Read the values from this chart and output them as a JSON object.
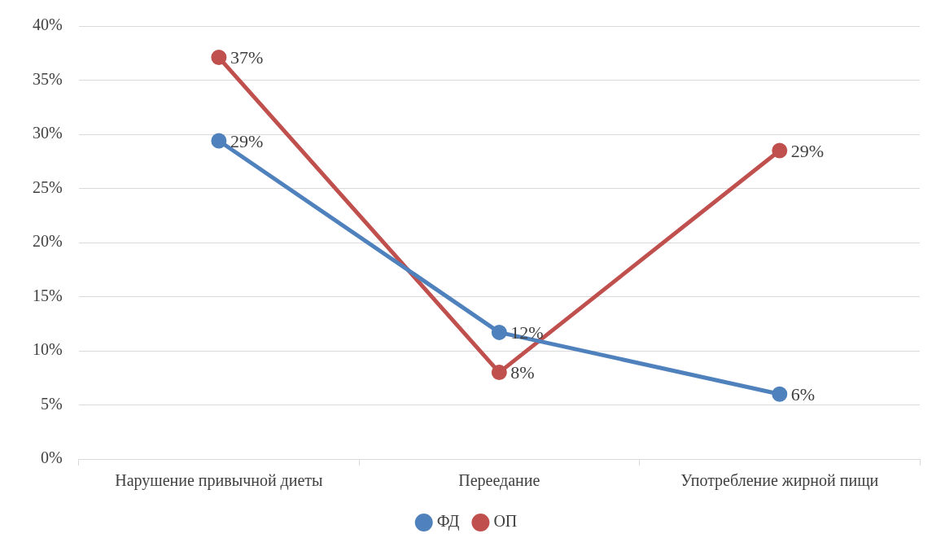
{
  "chart_data": {
    "type": "line",
    "categories": [
      "Нарушение привычной диеты",
      "Переедание",
      "Употребление жирной пищи"
    ],
    "series": [
      {
        "name": "ФД",
        "color": "#4f81bd",
        "values": [
          29.4,
          11.7,
          6
        ],
        "value_labels": [
          "29%",
          "12%",
          "6%"
        ]
      },
      {
        "name": "ОП",
        "color": "#c0504d",
        "values": [
          37.1,
          8,
          28.5
        ],
        "value_labels": [
          "37%",
          "8%",
          "29%"
        ]
      }
    ],
    "ylim": [
      0,
      40
    ],
    "yticks": [
      {
        "value": 0,
        "label": "0%"
      },
      {
        "value": 5,
        "label": "5%"
      },
      {
        "value": 10,
        "label": "10%"
      },
      {
        "value": 15,
        "label": "15%"
      },
      {
        "value": 20,
        "label": "20%"
      },
      {
        "value": 25,
        "label": "25%"
      },
      {
        "value": 30,
        "label": "30%"
      },
      {
        "value": 35,
        "label": "35%"
      },
      {
        "value": 40,
        "label": "40%"
      }
    ],
    "grid": "y",
    "legend": "bottom",
    "marker": "circle",
    "line_style": "solid"
  }
}
